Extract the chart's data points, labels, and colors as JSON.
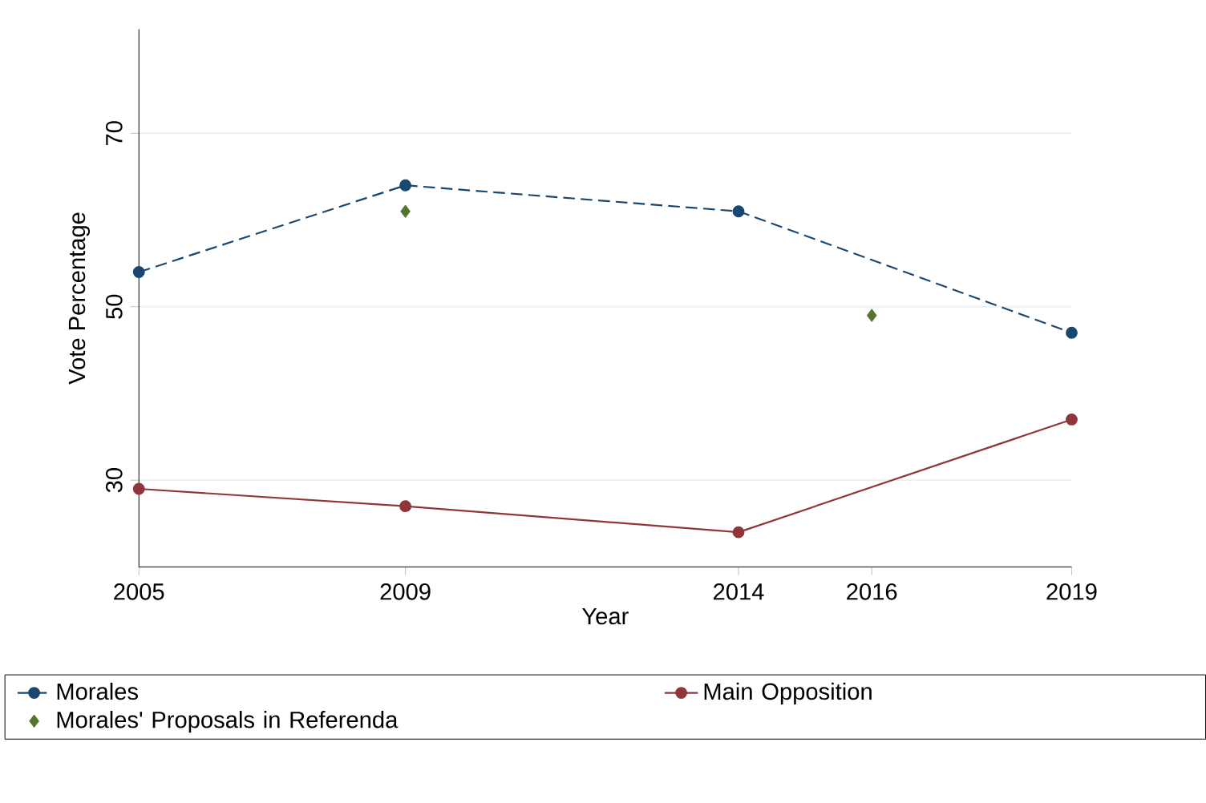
{
  "chart_data": {
    "type": "line",
    "xlabel": "Year",
    "ylabel": "Vote Percentage",
    "x": [
      2005,
      2009,
      2014,
      2019
    ],
    "series": [
      {
        "name": "Morales",
        "color": "#1a476f",
        "values": [
          54,
          64,
          61,
          47
        ],
        "line_style": "dashed",
        "marker": "circle"
      },
      {
        "name": "Main Opposition",
        "color": "#90353b",
        "values": [
          29,
          27,
          24,
          37
        ],
        "line_style": "solid",
        "marker": "circle"
      },
      {
        "name": "Morales' Proposals in Referenda",
        "type": "scatter",
        "color": "#55752f",
        "x": [
          2009,
          2016
        ],
        "values": [
          61,
          49
        ],
        "marker": "diamond"
      }
    ],
    "xlim": [
      2005,
      2019
    ],
    "ylim": [
      20,
      82
    ],
    "xticks": [
      2005,
      2009,
      2014,
      2016,
      2019
    ],
    "yticks": [
      30,
      50,
      70
    ],
    "grid": "y",
    "legend": "bottom"
  }
}
